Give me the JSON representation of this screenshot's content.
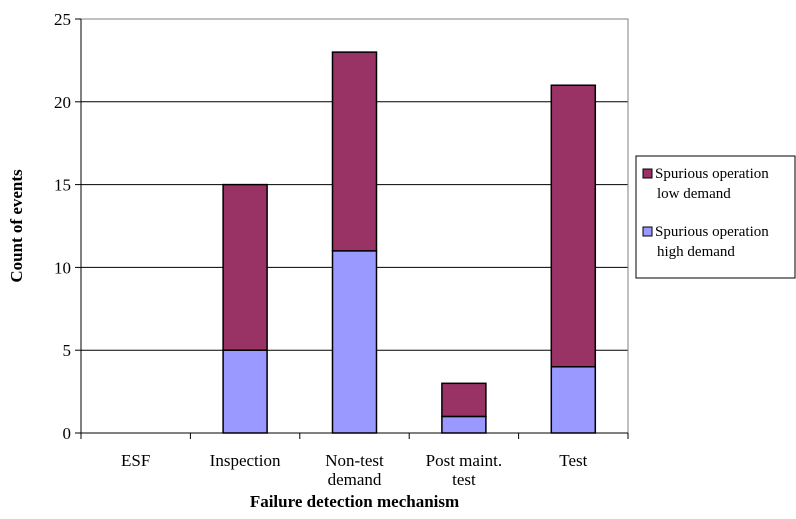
{
  "chart_data": {
    "type": "bar",
    "stacked": true,
    "title": "",
    "xlabel": "Failure detection mechanism",
    "ylabel": "Count of events",
    "ylim": [
      0,
      25
    ],
    "yticks": [
      0,
      5,
      10,
      15,
      20,
      25
    ],
    "grid": true,
    "legend_position": "right",
    "categories": [
      [
        "ESF"
      ],
      [
        "Inspection"
      ],
      [
        "Non-test",
        "demand"
      ],
      [
        "Post maint.",
        "test"
      ],
      [
        "Test"
      ]
    ],
    "series": [
      {
        "name": [
          "Spurious operation",
          "high demand"
        ],
        "color": "#9999ff",
        "values": [
          0,
          5,
          11,
          1,
          4
        ]
      },
      {
        "name": [
          "Spurious operation",
          "low demand"
        ],
        "color": "#993366",
        "values": [
          0,
          10,
          12,
          2,
          17
        ]
      }
    ]
  }
}
